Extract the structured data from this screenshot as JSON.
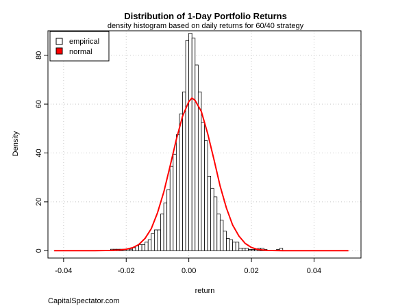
{
  "footer": "CapitalSpectator.com",
  "chart_data": {
    "type": "bar",
    "title": "Distribution of 1-Day Portfolio Returns",
    "subtitle": "density histogram based on daily returns for 60/40 strategy",
    "xlabel": "return",
    "ylabel": "Density",
    "xlim": [
      -0.045,
      0.055
    ],
    "ylim": [
      -3,
      90
    ],
    "x_ticks": [
      -0.04,
      -0.02,
      0.0,
      0.02,
      0.04
    ],
    "x_tick_labels": [
      "-0.04",
      "-0.02",
      "0.00",
      "0.02",
      "0.04"
    ],
    "y_ticks": [
      0,
      20,
      40,
      60,
      80
    ],
    "y_tick_labels": [
      "0",
      "20",
      "40",
      "60",
      "80"
    ],
    "grid": true,
    "legend_position": "top-left",
    "bin_width": 0.001,
    "series": [
      {
        "name": "empirical",
        "kind": "histogram",
        "color": "#ffffff",
        "stroke": "#000000",
        "bins_left": [
          -0.025,
          -0.024,
          -0.023,
          -0.022,
          -0.021,
          -0.02,
          -0.019,
          -0.018,
          -0.017,
          -0.016,
          -0.015,
          -0.014,
          -0.013,
          -0.012,
          -0.011,
          -0.01,
          -0.009,
          -0.008,
          -0.007,
          -0.006,
          -0.005,
          -0.004,
          -0.003,
          -0.002,
          -0.001,
          0.0,
          0.001,
          0.002,
          0.003,
          0.004,
          0.005,
          0.006,
          0.007,
          0.008,
          0.009,
          0.01,
          0.011,
          0.012,
          0.013,
          0.014,
          0.015,
          0.016,
          0.017,
          0.018,
          0.019,
          0.02,
          0.021,
          0.022,
          0.023,
          0.024,
          0.025,
          0.026,
          0.027,
          0.028,
          0.029
        ],
        "density": [
          0.6,
          0.6,
          0.6,
          0.6,
          0.6,
          0.6,
          0.6,
          1.2,
          2.0,
          2.5,
          2.5,
          3.5,
          4.5,
          7.0,
          8.5,
          8.5,
          15.0,
          19.5,
          25.0,
          34.5,
          39.5,
          47.5,
          56.0,
          65.0,
          86.0,
          89.0,
          87.0,
          76.0,
          65.0,
          52.5,
          45.0,
          30.5,
          25.5,
          22.0,
          15.0,
          12.5,
          8.0,
          5.0,
          4.5,
          3.5,
          3.5,
          1.0,
          1.0,
          1.0,
          0.5,
          0.5,
          0.5,
          1.0,
          1.0,
          0.5,
          0.0,
          0.0,
          0.0,
          0.5,
          1.0
        ]
      },
      {
        "name": "normal",
        "kind": "line",
        "color": "#ff0000",
        "x": [
          -0.043,
          -0.03,
          -0.025,
          -0.022,
          -0.02,
          -0.018,
          -0.016,
          -0.014,
          -0.012,
          -0.01,
          -0.008,
          -0.006,
          -0.004,
          -0.002,
          0.0,
          0.001,
          0.002,
          0.004,
          0.006,
          0.008,
          0.01,
          0.012,
          0.014,
          0.016,
          0.018,
          0.02,
          0.022,
          0.025,
          0.03,
          0.04,
          0.051
        ],
        "y": [
          0,
          0,
          0.1,
          0.3,
          0.6,
          1.2,
          2.5,
          5.0,
          9.0,
          15.5,
          24.0,
          34.5,
          45.5,
          55.0,
          61.0,
          62.5,
          61.5,
          57.0,
          48.0,
          37.5,
          26.5,
          17.5,
          10.5,
          6.0,
          3.0,
          1.3,
          0.5,
          0.1,
          0,
          0,
          0
        ]
      }
    ]
  }
}
